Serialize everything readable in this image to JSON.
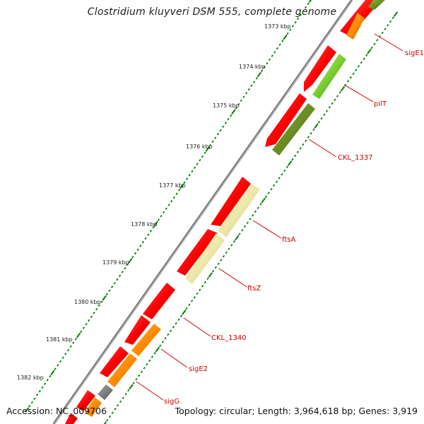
{
  "title": "Clostridium kluyveri DSM 555, complete genome",
  "accession": "Accession: NC_009706",
  "topology": "Topology: circular; Length: 3,964,618 bp; Genes: 3,919",
  "ticks": [
    "1373 kbp",
    "1374 kbp",
    "1375 kbp",
    "1376 kbp",
    "1377 kbp",
    "1378 kbp",
    "1379 kbp",
    "1380 kbp",
    "1381 kbp",
    "1382 kbp"
  ],
  "genes": [
    {
      "name": "sigE1"
    },
    {
      "name": "pilT"
    },
    {
      "name": "CKL_1337"
    },
    {
      "name": "ftsA"
    },
    {
      "name": "ftsZ"
    },
    {
      "name": "CKL_1340"
    },
    {
      "name": "sigE2"
    },
    {
      "name": "sigG"
    }
  ],
  "colors": {
    "cds_red": "#ff0000",
    "orange": "#ff8c00",
    "olive": "#6b8e23",
    "light_green": "#9acd32",
    "pale_yellow": "#eee8aa",
    "gray": "#808080",
    "tick_green": "#008000",
    "label_red": "#cc0000"
  }
}
